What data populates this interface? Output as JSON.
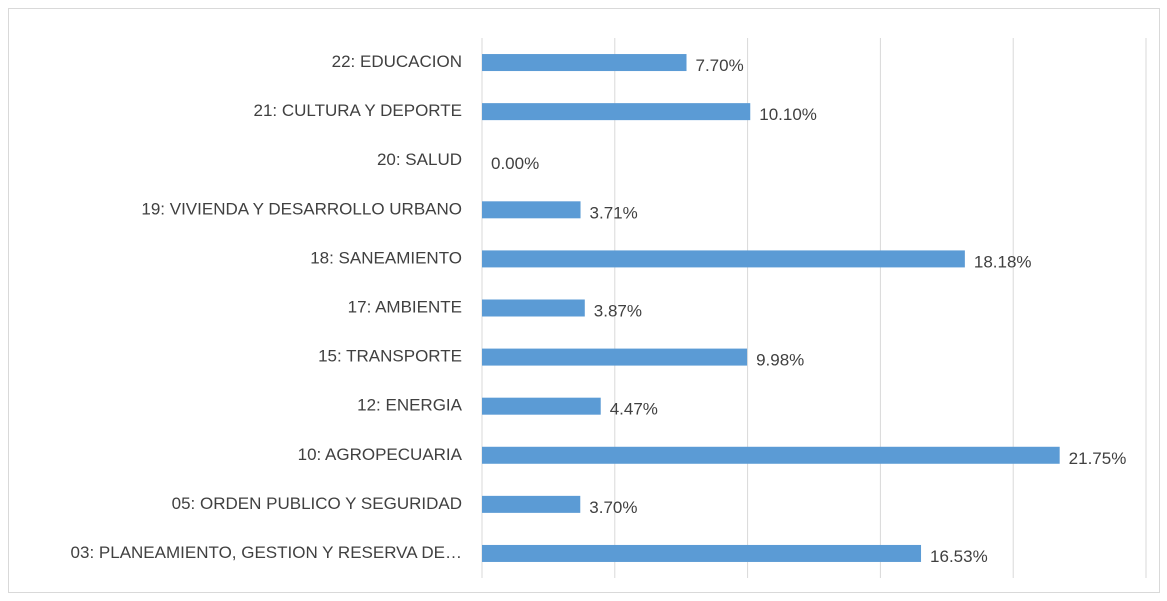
{
  "chart_data": {
    "type": "barh",
    "categories": [
      "22: EDUCACION",
      "21: CULTURA Y DEPORTE",
      "20: SALUD",
      "19: VIVIENDA Y DESARROLLO URBANO",
      "18: SANEAMIENTO",
      "17: AMBIENTE",
      "15: TRANSPORTE",
      "12: ENERGIA",
      "10: AGROPECUARIA",
      "05: ORDEN PUBLICO Y SEGURIDAD",
      "03: PLANEAMIENTO, GESTION Y RESERVA DE…"
    ],
    "values": [
      7.7,
      10.1,
      0,
      3.71,
      18.18,
      3.87,
      9.98,
      4.47,
      21.75,
      3.7,
      16.53
    ],
    "value_labels": [
      "7.70%",
      "10.10%",
      "0.00%",
      "3.71%",
      "18.18%",
      "3.87%",
      "9.98%",
      "4.47%",
      "21.75%",
      "3.70%",
      "16.53%"
    ],
    "color": "#5b9bd5",
    "xlim": [
      0,
      25
    ],
    "xticks": [
      0,
      5,
      10,
      15,
      20,
      25
    ],
    "grid": true
  }
}
